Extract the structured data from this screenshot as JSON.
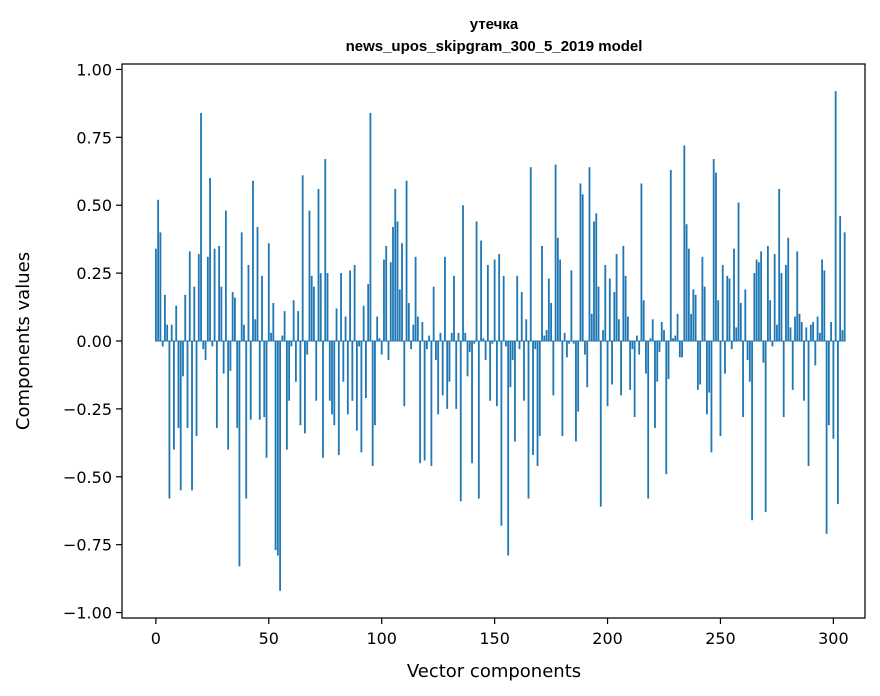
{
  "chart_data": {
    "type": "bar",
    "title_line1": "утечка",
    "title_line2": "news_upos_skipgram_300_5_2019 model",
    "xlabel": "Vector components",
    "ylabel": "Components values",
    "xlim": [
      -15,
      314
    ],
    "ylim": [
      -1.02,
      1.02
    ],
    "x_ticks": [
      0,
      50,
      100,
      150,
      200,
      250,
      300
    ],
    "x_tick_labels": [
      "0",
      "50",
      "100",
      "150",
      "200",
      "250",
      "300"
    ],
    "y_ticks": [
      1.0,
      0.75,
      0.5,
      0.25,
      0.0,
      -0.25,
      -0.5,
      -0.75,
      -1.0
    ],
    "y_tick_labels": [
      "1.00",
      "0.75",
      "0.50",
      "0.25",
      "0.00",
      "−0.25",
      "−0.50",
      "−0.75",
      "−1.00"
    ],
    "bar_color": "#1f77b4",
    "values": [
      0.34,
      0.52,
      0.4,
      -0.02,
      0.17,
      0.06,
      -0.58,
      0.06,
      -0.4,
      0.13,
      -0.32,
      -0.55,
      -0.13,
      0.17,
      -0.32,
      0.33,
      -0.55,
      0.2,
      -0.35,
      0.32,
      0.84,
      -0.03,
      -0.07,
      0.31,
      0.6,
      -0.02,
      0.34,
      -0.32,
      0.35,
      0.2,
      -0.12,
      0.48,
      -0.4,
      -0.11,
      0.18,
      0.16,
      -0.32,
      -0.83,
      0.4,
      0.06,
      -0.58,
      0.28,
      -0.29,
      0.59,
      0.08,
      0.42,
      -0.29,
      0.24,
      -0.28,
      -0.43,
      0.36,
      0.03,
      0.14,
      -0.77,
      -0.79,
      -0.92,
      0.02,
      0.11,
      -0.4,
      -0.22,
      -0.02,
      0.15,
      -0.15,
      0.11,
      -0.31,
      0.61,
      -0.34,
      -0.05,
      0.48,
      0.24,
      0.2,
      -0.22,
      0.56,
      0.25,
      -0.43,
      0.67,
      0.25,
      -0.22,
      -0.27,
      -0.31,
      0.12,
      -0.42,
      0.25,
      -0.15,
      0.09,
      -0.27,
      0.26,
      -0.22,
      0.28,
      -0.33,
      -0.02,
      -0.41,
      0.13,
      -0.21,
      0.21,
      0.84,
      -0.46,
      -0.31,
      0.09,
      0.01,
      -0.05,
      0.3,
      0.35,
      -0.07,
      0.29,
      0.42,
      0.56,
      0.44,
      0.19,
      0.36,
      -0.24,
      0.59,
      0.14,
      -0.03,
      0.06,
      0.31,
      0.09,
      -0.45,
      0.07,
      -0.44,
      -0.03,
      0.02,
      -0.46,
      0.2,
      -0.07,
      -0.27,
      0.03,
      -0.2,
      0.31,
      -0.25,
      -0.15,
      0.03,
      0.24,
      -0.25,
      0.03,
      -0.59,
      0.5,
      0.03,
      -0.13,
      -0.04,
      -0.45,
      -0.01,
      0.44,
      -0.58,
      0.37,
      0.01,
      -0.07,
      0.28,
      -0.22,
      -0.01,
      0.3,
      -0.24,
      0.32,
      -0.68,
      0.24,
      -0.02,
      -0.79,
      -0.17,
      -0.07,
      -0.37,
      0.24,
      -0.03,
      0.18,
      -0.22,
      0.08,
      -0.58,
      0.64,
      -0.42,
      -0.03,
      -0.46,
      -0.35,
      0.35,
      0.02,
      0.04,
      0.23,
      0.14,
      -0.2,
      0.65,
      0.38,
      0.3,
      -0.35,
      0.03,
      -0.06,
      -0.01,
      0.26,
      -0.01,
      -0.37,
      -0.26,
      0.58,
      0.54,
      -0.05,
      -0.17,
      0.64,
      0.1,
      0.44,
      0.47,
      0.2,
      -0.61,
      0.04,
      0.28,
      -0.24,
      0.23,
      -0.16,
      0.18,
      0.32,
      0.08,
      -0.2,
      0.35,
      0.24,
      0.09,
      -0.18,
      -0.03,
      -0.28,
      0.02,
      -0.05,
      0.58,
      0.15,
      -0.12,
      -0.58,
      0.01,
      0.08,
      -0.32,
      -0.15,
      -0.04,
      0.07,
      0.04,
      -0.49,
      -0.14,
      0.63,
      0.01,
      0.02,
      0.1,
      -0.06,
      -0.06,
      0.72,
      0.43,
      0.34,
      0.1,
      0.19,
      0.17,
      -0.18,
      -0.16,
      0.31,
      0.2,
      -0.27,
      -0.19,
      -0.41,
      0.67,
      0.62,
      0.15,
      -0.35,
      0.28,
      -0.12,
      0.24,
      0.23,
      -0.03,
      0.34,
      0.05,
      0.51,
      0.14,
      -0.28,
      0.19,
      -0.07,
      -0.15,
      -0.66,
      0.25,
      0.3,
      0.29,
      0.33,
      -0.08,
      -0.63,
      0.35,
      0.15,
      -0.02,
      0.32,
      0.06,
      0.56,
      0.25,
      -0.28,
      0.28,
      0.38,
      0.05,
      -0.18,
      0.09,
      0.33,
      0.1,
      0.07,
      -0.22,
      0.05,
      -0.46,
      0.06,
      0.07,
      -0.09,
      0.09,
      0.03,
      0.3,
      0.26,
      -0.71,
      -0.31,
      0.07,
      -0.36,
      0.92,
      -0.6,
      0.46,
      0.04,
      0.4
    ]
  }
}
